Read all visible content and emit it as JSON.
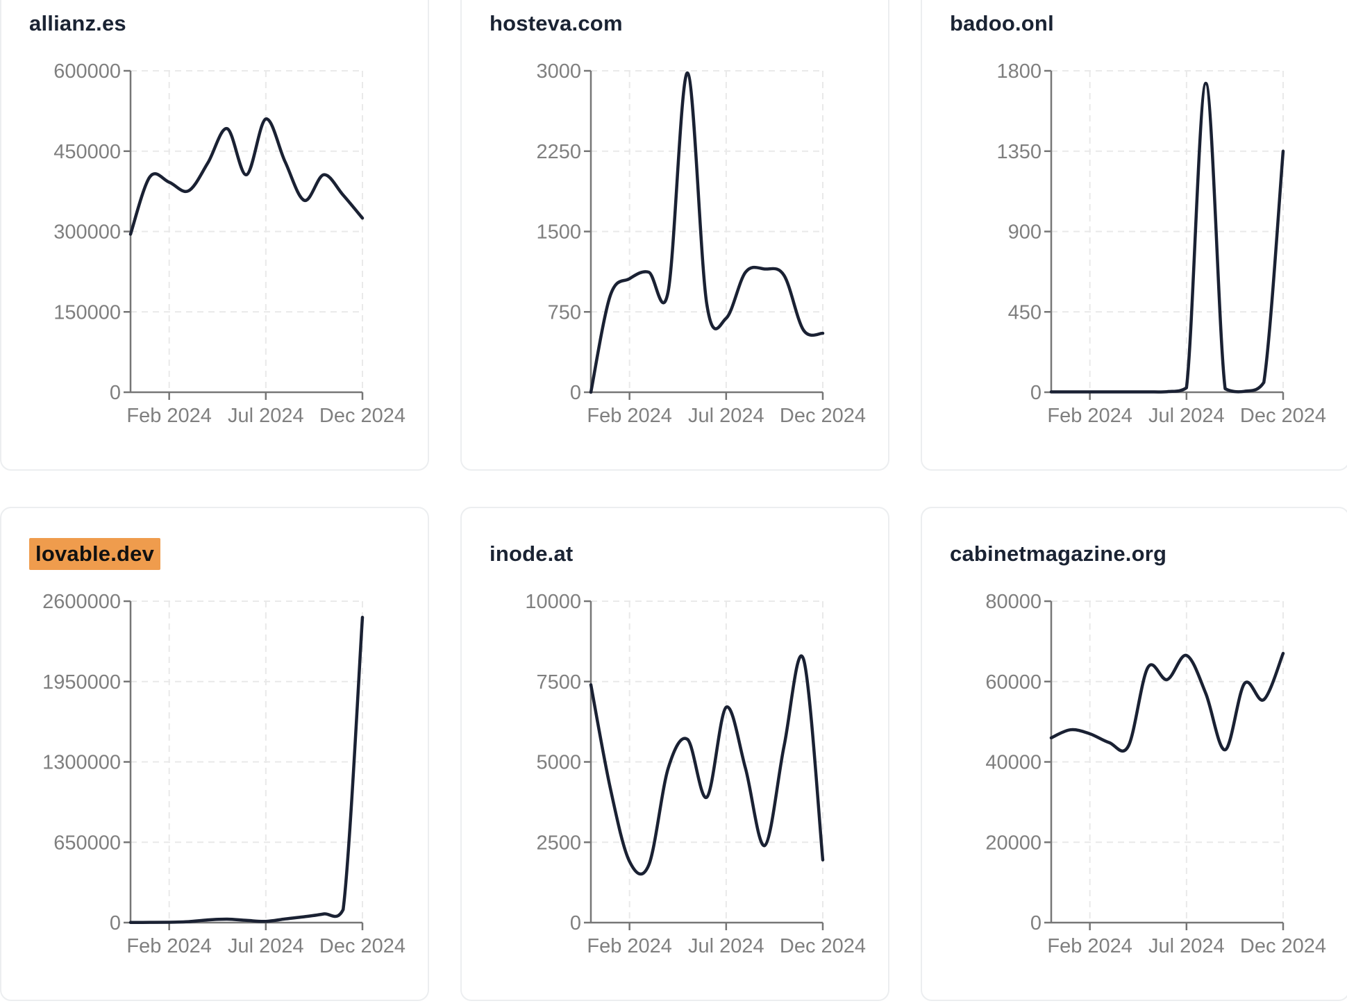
{
  "page": {
    "background": "#ffffff"
  },
  "theme": {
    "line_color": "#1a2133",
    "title_color": "#1a2333",
    "axis_color": "#767676",
    "label_color": "#7f7f7f",
    "grid_color": "#e9e9e9",
    "card_border_color": "#eceef0",
    "card_background": "#ffffff",
    "highlight_color": "#ef9c4d",
    "highlight_text_color": "#111111"
  },
  "x_axis_tick_labels": [
    "Feb 2024",
    "Jul 2024",
    "Dec 2024"
  ],
  "chart_data": [
    {
      "type": "line",
      "title": "allianz.es",
      "title_highlight": false,
      "x": [
        "Dec 2023",
        "Jan 2024",
        "Feb 2024",
        "Mar 2024",
        "Apr 2024",
        "May 2024",
        "Jun 2024",
        "Jul 2024",
        "Aug 2024",
        "Sep 2024",
        "Oct 2024",
        "Nov 2024",
        "Dec 2024"
      ],
      "values": [
        295000,
        402000,
        392000,
        376000,
        428000,
        492000,
        406000,
        510000,
        430000,
        358000,
        406000,
        368000,
        325000
      ],
      "ylim": [
        0,
        600000
      ],
      "y_ticks": [
        0,
        150000,
        300000,
        450000,
        600000
      ],
      "x_tick_labels": [
        "Feb 2024",
        "Jul 2024",
        "Dec 2024"
      ],
      "x_tick_indices": [
        2,
        7,
        12
      ],
      "grid": true,
      "legend": false
    },
    {
      "type": "line",
      "title": "hosteva.com",
      "title_highlight": false,
      "x": [
        "Dec 2023",
        "Jan 2024",
        "Feb 2024",
        "Mar 2024",
        "Apr 2024",
        "May 2024",
        "Jun 2024",
        "Jul 2024",
        "Aug 2024",
        "Sep 2024",
        "Oct 2024",
        "Nov 2024",
        "Dec 2024"
      ],
      "values": [
        0,
        900,
        1060,
        1120,
        940,
        2980,
        820,
        690,
        1120,
        1150,
        1090,
        580,
        550
      ],
      "ylim": [
        0,
        3000
      ],
      "y_ticks": [
        0,
        750,
        1500,
        2250,
        3000
      ],
      "x_tick_labels": [
        "Feb 2024",
        "Jul 2024",
        "Dec 2024"
      ],
      "x_tick_indices": [
        2,
        7,
        12
      ],
      "grid": true,
      "legend": false
    },
    {
      "type": "line",
      "title": "badoo.onl",
      "title_highlight": false,
      "x": [
        "Dec 2023",
        "Jan 2024",
        "Feb 2024",
        "Mar 2024",
        "Apr 2024",
        "May 2024",
        "Jun 2024",
        "Jul 2024",
        "Aug 2024",
        "Sep 2024",
        "Oct 2024",
        "Nov 2024",
        "Dec 2024"
      ],
      "values": [
        2,
        2,
        2,
        2,
        2,
        2,
        3,
        25,
        1730,
        20,
        5,
        55,
        1350
      ],
      "ylim": [
        0,
        1800
      ],
      "y_ticks": [
        0,
        450,
        900,
        1350,
        1800
      ],
      "x_tick_labels": [
        "Feb 2024",
        "Jul 2024",
        "Dec 2024"
      ],
      "x_tick_indices": [
        2,
        7,
        12
      ],
      "grid": true,
      "legend": false
    },
    {
      "type": "line",
      "title": "lovable.dev",
      "title_highlight": true,
      "x": [
        "Dec 2023",
        "Jan 2024",
        "Feb 2024",
        "Mar 2024",
        "Apr 2024",
        "May 2024",
        "Jun 2024",
        "Jul 2024",
        "Aug 2024",
        "Sep 2024",
        "Oct 2024",
        "Nov 2024",
        "Dec 2024"
      ],
      "values": [
        1000,
        2000,
        3000,
        8000,
        22000,
        28000,
        18000,
        10000,
        30000,
        48000,
        70000,
        105000,
        2470000
      ],
      "ylim": [
        0,
        2600000
      ],
      "y_ticks": [
        0,
        650000,
        1300000,
        1950000,
        2600000
      ],
      "x_tick_labels": [
        "Feb 2024",
        "Jul 2024",
        "Dec 2024"
      ],
      "x_tick_indices": [
        2,
        7,
        12
      ],
      "grid": true,
      "legend": false
    },
    {
      "type": "line",
      "title": "inode.at",
      "title_highlight": false,
      "x": [
        "Dec 2023",
        "Jan 2024",
        "Feb 2024",
        "Mar 2024",
        "Apr 2024",
        "May 2024",
        "Jun 2024",
        "Jul 2024",
        "Aug 2024",
        "Sep 2024",
        "Oct 2024",
        "Nov 2024",
        "Dec 2024"
      ],
      "values": [
        7400,
        4200,
        1900,
        1800,
        4800,
        5700,
        3900,
        6700,
        4800,
        2400,
        5500,
        8200,
        1950
      ],
      "ylim": [
        0,
        10000
      ],
      "y_ticks": [
        0,
        2500,
        5000,
        7500,
        10000
      ],
      "x_tick_labels": [
        "Feb 2024",
        "Jul 2024",
        "Dec 2024"
      ],
      "x_tick_indices": [
        2,
        7,
        12
      ],
      "grid": true,
      "legend": false
    },
    {
      "type": "line",
      "title": "cabinetmagazine.org",
      "title_highlight": false,
      "x": [
        "Dec 2023",
        "Jan 2024",
        "Feb 2024",
        "Mar 2024",
        "Apr 2024",
        "May 2024",
        "Jun 2024",
        "Jul 2024",
        "Aug 2024",
        "Sep 2024",
        "Oct 2024",
        "Nov 2024",
        "Dec 2024"
      ],
      "values": [
        46000,
        48000,
        47000,
        44800,
        44000,
        63500,
        60500,
        66500,
        57000,
        43000,
        59500,
        55500,
        67000
      ],
      "ylim": [
        0,
        80000
      ],
      "y_ticks": [
        0,
        20000,
        40000,
        60000,
        80000
      ],
      "x_tick_labels": [
        "Feb 2024",
        "Jul 2024",
        "Dec 2024"
      ],
      "x_tick_indices": [
        2,
        7,
        12
      ],
      "grid": true,
      "legend": false
    }
  ]
}
